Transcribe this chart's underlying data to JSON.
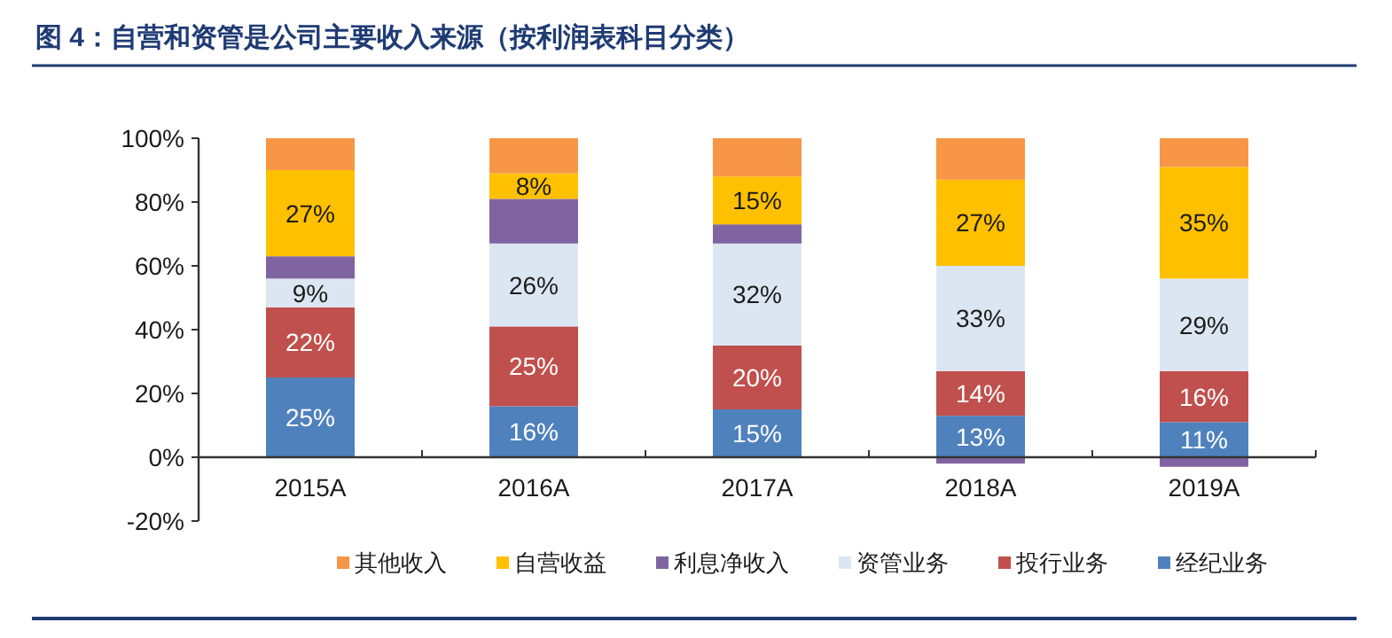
{
  "chart_data": {
    "type": "bar",
    "stacked": true,
    "title": "图 4：自营和资管是公司主要收入来源（按利润表科目分类）",
    "categories": [
      "2015A",
      "2016A",
      "2017A",
      "2018A",
      "2019A"
    ],
    "ylim": [
      -20,
      100
    ],
    "yticks": [
      {
        "value": -20,
        "label": "-20%"
      },
      {
        "value": 0,
        "label": "0%"
      },
      {
        "value": 20,
        "label": "20%"
      },
      {
        "value": 40,
        "label": "40%"
      },
      {
        "value": 60,
        "label": "60%"
      },
      {
        "value": 80,
        "label": "80%"
      },
      {
        "value": 100,
        "label": "100%"
      }
    ],
    "grid": false,
    "legend": "bottom",
    "series": [
      {
        "name": "经纪业务",
        "color": "#4f81bd",
        "values": [
          25,
          16,
          15,
          13,
          11
        ],
        "value_labels": [
          "25%",
          "16%",
          "15%",
          "13%",
          "11%"
        ]
      },
      {
        "name": "投行业务",
        "color": "#c0504d",
        "values": [
          22,
          25,
          20,
          14,
          16
        ],
        "value_labels": [
          "22%",
          "25%",
          "20%",
          "14%",
          "16%"
        ]
      },
      {
        "name": "资管业务",
        "color": "#dce6f2",
        "values": [
          9,
          26,
          32,
          33,
          29
        ],
        "value_labels": [
          "9%",
          "26%",
          "32%",
          "33%",
          "29%"
        ]
      },
      {
        "name": "利息净收入",
        "color": "#8064a2",
        "values": [
          7,
          14,
          6,
          -2,
          -3
        ]
      },
      {
        "name": "自营收益",
        "color": "#ffc000",
        "values": [
          27,
          8,
          15,
          27,
          35
        ],
        "value_labels": [
          "27%",
          "8%",
          "15%",
          "27%",
          "35%"
        ]
      },
      {
        "name": "其他收入",
        "color": "#f79646",
        "values": [
          10,
          11,
          12,
          13,
          9
        ]
      }
    ]
  }
}
